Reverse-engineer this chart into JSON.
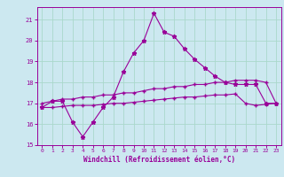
{
  "xlabel": "Windchill (Refroidissement éolien,°C)",
  "background_color": "#cce8f0",
  "grid_color": "#aad8cc",
  "line_color": "#990099",
  "xlim": [
    -0.5,
    23.5
  ],
  "ylim": [
    15,
    21.6
  ],
  "yticks": [
    15,
    16,
    17,
    18,
    19,
    20,
    21
  ],
  "xticks": [
    0,
    1,
    2,
    3,
    4,
    5,
    6,
    7,
    8,
    9,
    10,
    11,
    12,
    13,
    14,
    15,
    16,
    17,
    18,
    19,
    20,
    21,
    22,
    23
  ],
  "x_jagged": [
    0,
    1,
    2,
    3,
    4,
    5,
    6,
    7,
    8,
    9,
    10,
    11,
    12,
    13,
    14,
    15,
    16,
    17,
    18,
    19,
    20,
    21,
    22,
    23
  ],
  "y_jagged": [
    16.8,
    17.1,
    17.1,
    16.1,
    15.4,
    16.1,
    16.8,
    17.3,
    18.5,
    19.4,
    20.0,
    21.3,
    20.4,
    20.2,
    19.6,
    19.1,
    18.7,
    18.3,
    18.0,
    17.9,
    17.9,
    17.9,
    17.0,
    17.0
  ],
  "x_upper": [
    0,
    1,
    2,
    3,
    4,
    5,
    6,
    7,
    8,
    9,
    10,
    11,
    12,
    13,
    14,
    15,
    16,
    17,
    18,
    19,
    20,
    21,
    22,
    23
  ],
  "y_upper": [
    17.0,
    17.1,
    17.2,
    17.2,
    17.3,
    17.3,
    17.4,
    17.4,
    17.5,
    17.5,
    17.6,
    17.7,
    17.7,
    17.8,
    17.8,
    17.9,
    17.9,
    18.0,
    18.0,
    18.1,
    18.1,
    18.1,
    18.0,
    17.0
  ],
  "x_lower": [
    0,
    1,
    2,
    3,
    4,
    5,
    6,
    7,
    8,
    9,
    10,
    11,
    12,
    13,
    14,
    15,
    16,
    17,
    18,
    19,
    20,
    21,
    22,
    23
  ],
  "y_lower": [
    16.8,
    16.8,
    16.85,
    16.9,
    16.9,
    16.9,
    16.95,
    17.0,
    17.0,
    17.05,
    17.1,
    17.15,
    17.2,
    17.25,
    17.3,
    17.3,
    17.35,
    17.4,
    17.4,
    17.45,
    17.0,
    16.9,
    16.95,
    17.0
  ]
}
